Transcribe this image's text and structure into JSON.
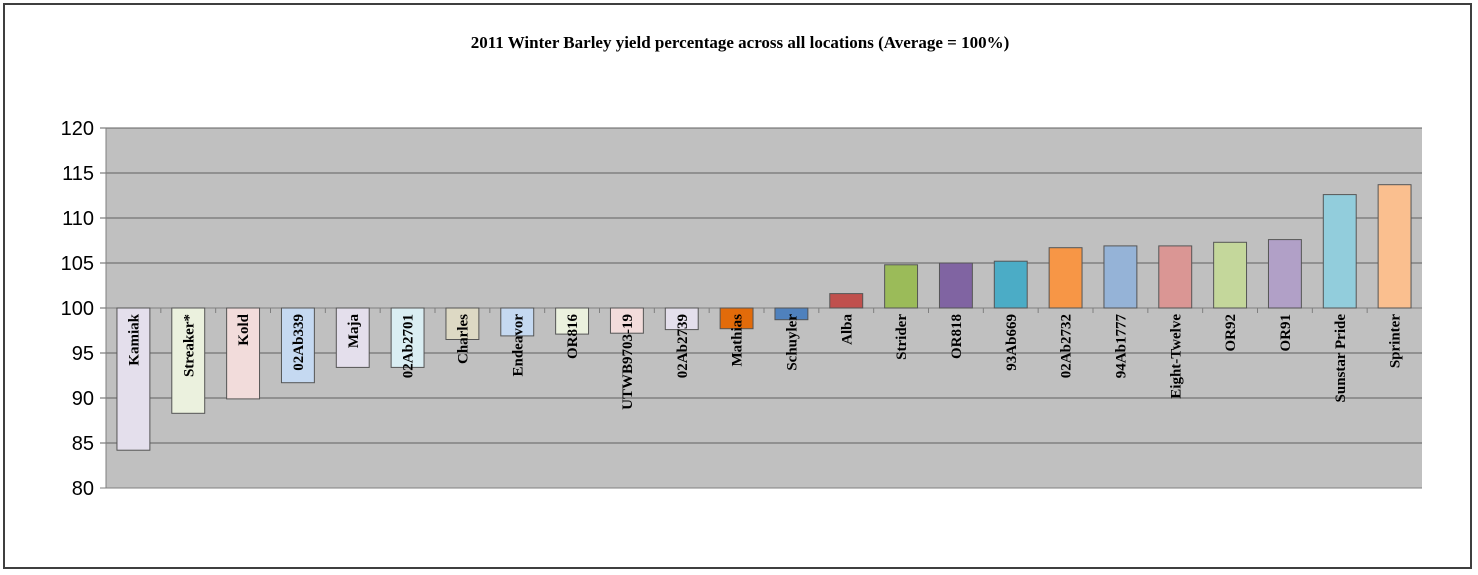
{
  "chart_data": {
    "type": "bar",
    "title": "2011 Winter Barley yield percentage across all locations (Average = 100%)",
    "xlabel": "",
    "ylabel": "",
    "ylim": [
      80,
      120
    ],
    "yticks": [
      120,
      115,
      110,
      105,
      100,
      95,
      90,
      85,
      80
    ],
    "baseline": 100,
    "grid": true,
    "legend": "none",
    "plot_background": "#c0c0c0",
    "categories": [
      "Kamiak",
      "Streaker*",
      "Kold",
      "02Ab339",
      "Maja",
      "02Ab2701",
      "Charles",
      "Endeavor",
      "OR816",
      "UTWB9703-19",
      "02Ab2739",
      "Mathias",
      "Schuyler",
      "Alba",
      "Strider",
      "OR818",
      "93Ab669",
      "02Ab2732",
      "94Ab1777",
      "Eight-Twelve",
      "OR92",
      "OR91",
      "Sunstar Pride",
      "Sprinter"
    ],
    "values": [
      84.2,
      88.3,
      89.9,
      91.7,
      93.4,
      93.4,
      96.5,
      96.9,
      97.1,
      97.2,
      97.6,
      97.7,
      98.7,
      101.6,
      104.8,
      105.0,
      105.2,
      106.7,
      106.9,
      106.9,
      107.3,
      107.6,
      112.6,
      113.7
    ],
    "colors": [
      "#e4dfec",
      "#ebf1de",
      "#f2dcdb",
      "#c5d9f1",
      "#e4dfec",
      "#daeef3",
      "#ddd9c4",
      "#c5d9f1",
      "#ebf1de",
      "#f2dcdb",
      "#e4dfec",
      "#e26b0a",
      "#4f81bd",
      "#c0504d",
      "#9bbb59",
      "#8064a2",
      "#4bacc6",
      "#f79646",
      "#95b3d7",
      "#da9694",
      "#c4d79b",
      "#b1a0c7",
      "#92cddc",
      "#fabf8f"
    ]
  }
}
